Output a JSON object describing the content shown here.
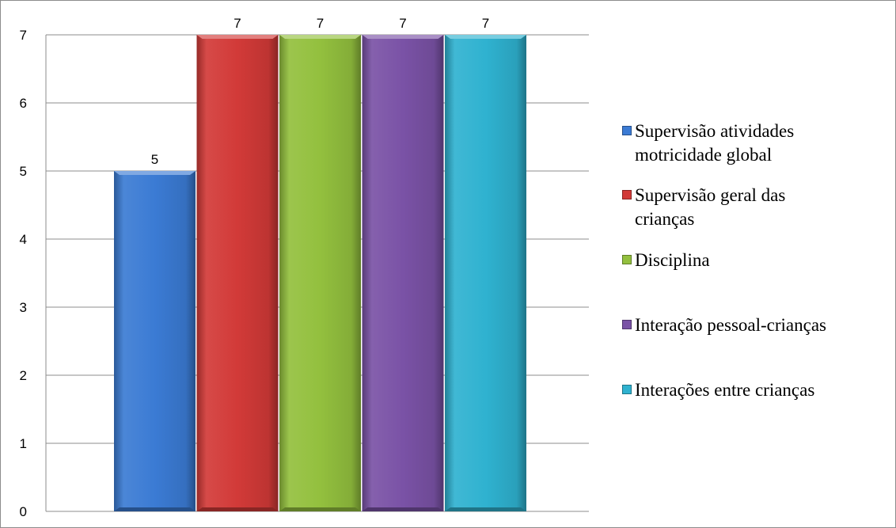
{
  "chart_data": {
    "type": "bar",
    "title": "",
    "xlabel": "",
    "ylabel": "",
    "ylim": [
      0,
      7
    ],
    "yticks": [
      0,
      1,
      2,
      3,
      4,
      5,
      6,
      7
    ],
    "grid": true,
    "legend_position": "right",
    "series": [
      {
        "name": "Supervisão atividades motricidade global",
        "value": 5,
        "label": "5",
        "color": "#3b7bd4"
      },
      {
        "name": "Supervisão geral das crianças",
        "value": 7,
        "label": "7",
        "color": "#d23a38"
      },
      {
        "name": "Disciplina",
        "value": 7,
        "label": "7",
        "color": "#93c03e"
      },
      {
        "name": "Interação pessoal-crianças",
        "value": 7,
        "label": "7",
        "color": "#7a52a6"
      },
      {
        "name": "Interações entre crianças",
        "value": 7,
        "label": "7",
        "color": "#2fb2d0"
      }
    ]
  },
  "legend": {
    "items": [
      {
        "lines": [
          "Supervisão atividades",
          "motricidade global"
        ]
      },
      {
        "lines": [
          "Supervisão geral das",
          "crianças"
        ]
      },
      {
        "lines": [
          "Disciplina"
        ]
      },
      {
        "lines": [
          "Interação pessoal-crianças"
        ]
      },
      {
        "lines": [
          "Interações entre crianças"
        ]
      }
    ]
  }
}
